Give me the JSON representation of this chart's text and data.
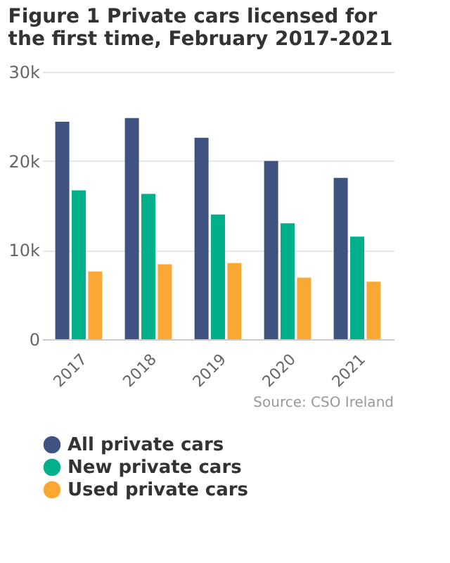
{
  "chart_data": {
    "type": "bar",
    "title": "Figure 1 Private cars licensed for the first time, February 2017-2021",
    "categories": [
      "2017",
      "2018",
      "2019",
      "2020",
      "2021"
    ],
    "series": [
      {
        "name": "All private cars",
        "color": "#3f5280",
        "values": [
          24400,
          24800,
          22600,
          20000,
          18100
        ]
      },
      {
        "name": "New private cars",
        "color": "#00b08a",
        "values": [
          16700,
          16300,
          14000,
          13000,
          11500
        ]
      },
      {
        "name": "Used private cars",
        "color": "#f9a833",
        "values": [
          7600,
          8400,
          8550,
          6900,
          6450
        ]
      }
    ],
    "ylim": [
      0,
      30000
    ],
    "yticks": [
      {
        "value": 0,
        "label": "0"
      },
      {
        "value": 10000,
        "label": "10k"
      },
      {
        "value": 20000,
        "label": "20k"
      },
      {
        "value": 30000,
        "label": "30k"
      }
    ],
    "grid": "y",
    "legend": "bottom",
    "annotations": [
      "Source: CSO Ireland"
    ]
  }
}
